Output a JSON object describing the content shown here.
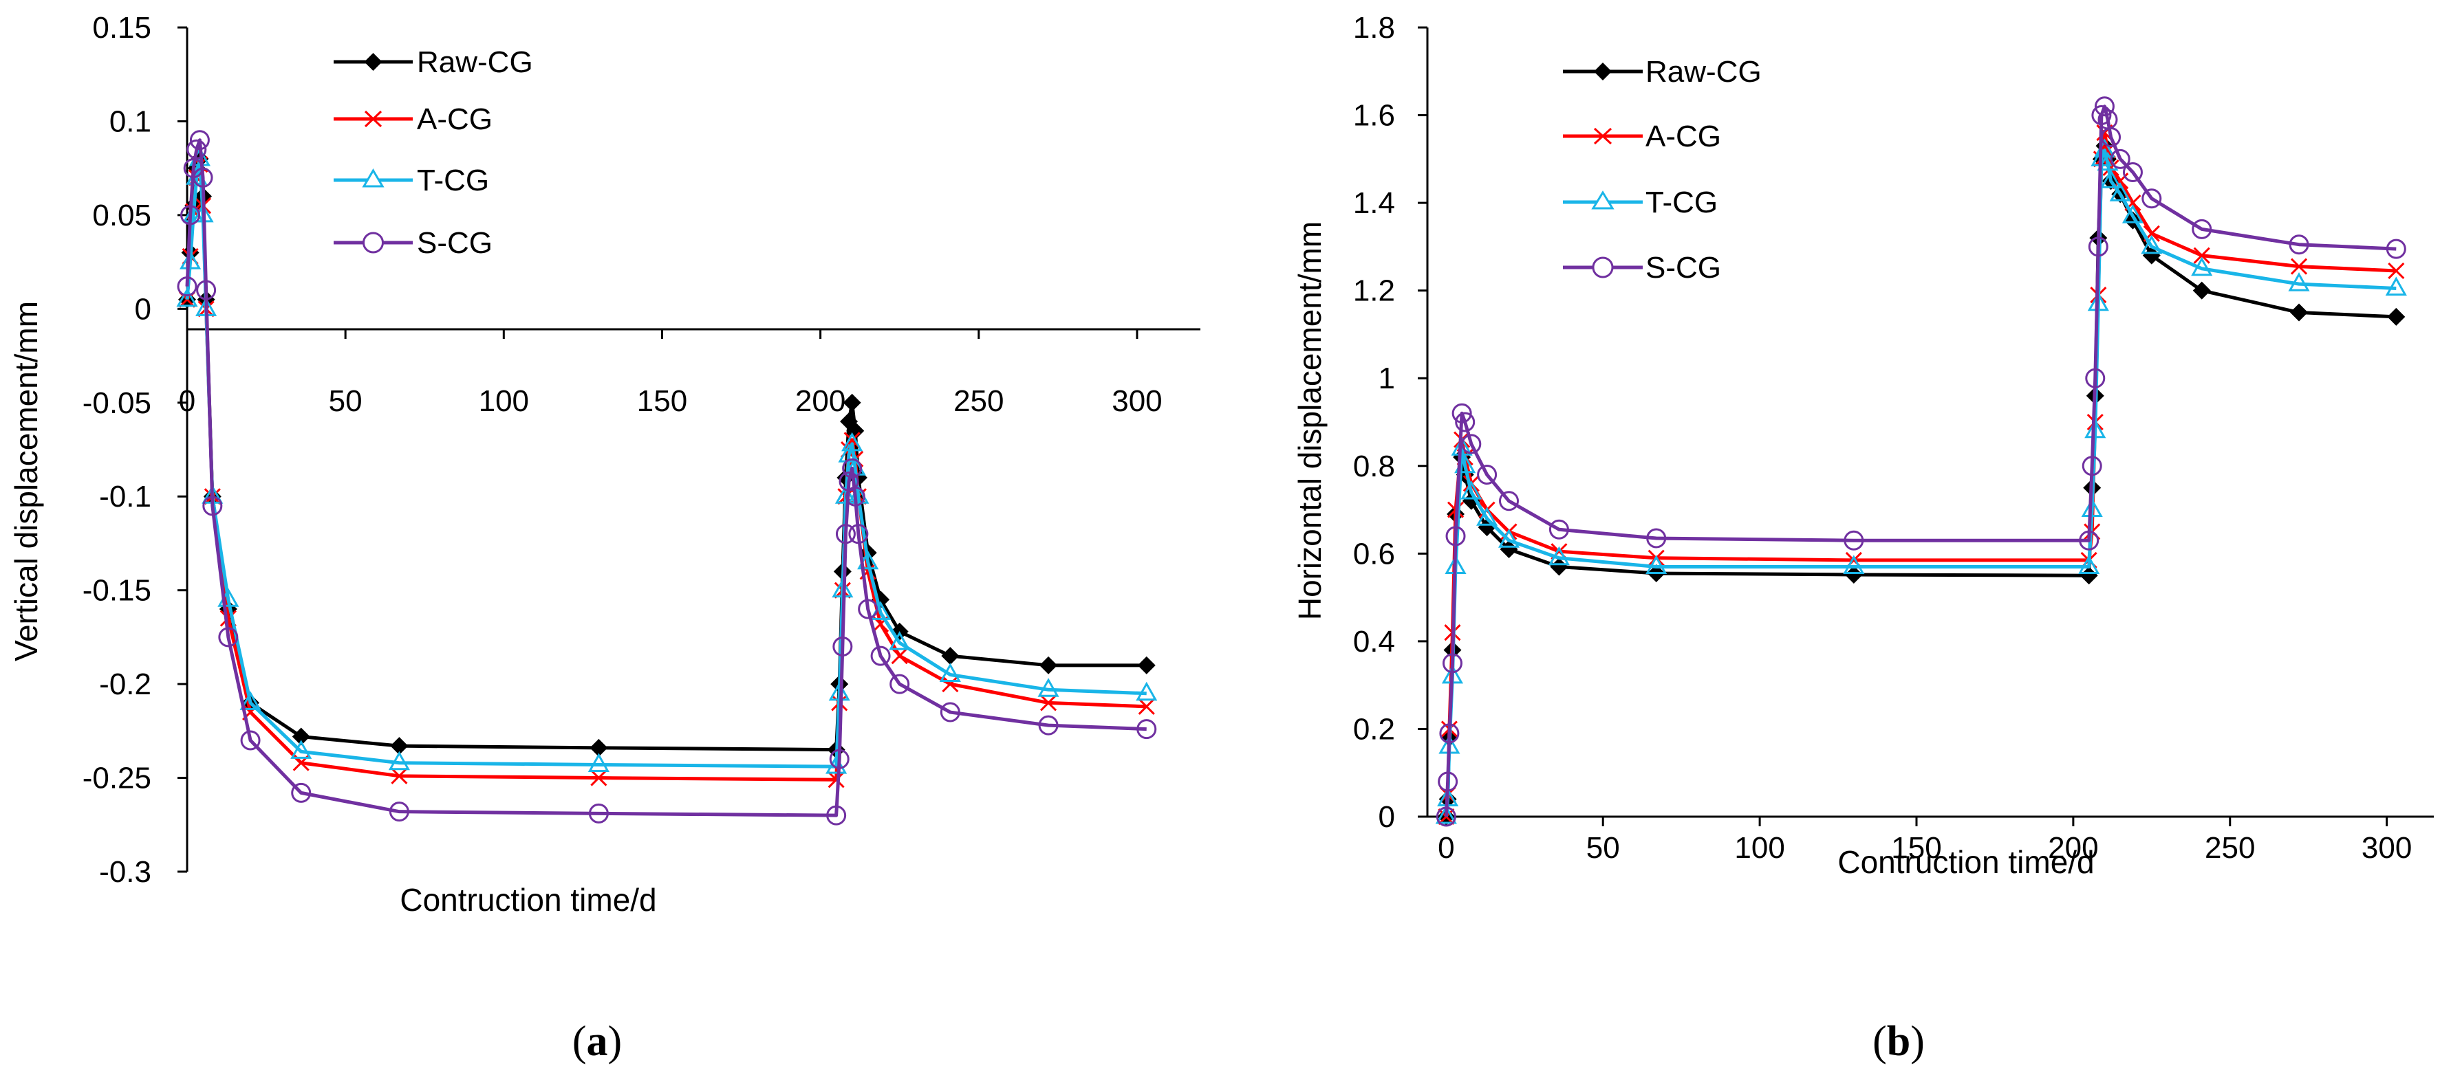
{
  "chart_data": [
    {
      "type": "line",
      "panel_label": "a",
      "xlabel": "Contruction time/d",
      "ylabel": "Vertical displacement/mm",
      "xlim": [
        0,
        320
      ],
      "ylim": [
        -0.3,
        0.15
      ],
      "xticks": [
        "0",
        "50",
        "100",
        "150",
        "200",
        "250",
        "300"
      ],
      "yticks": [
        "0.15",
        "0.1",
        "0.05",
        "0",
        "-0.05",
        "-0.1",
        "-0.15",
        "-0.2",
        "-0.25",
        "-0.3"
      ],
      "x_axis_at_zero": true,
      "legend_position": "top-center",
      "series": [
        {
          "name": "Raw-CG",
          "color": "#000000",
          "marker": "diamond",
          "x": [
            0,
            1,
            2,
            3,
            4,
            5,
            6,
            8,
            13,
            20,
            36,
            67,
            130,
            205,
            206,
            207,
            208,
            209,
            210,
            211,
            212,
            215,
            219,
            225,
            241,
            272,
            303
          ],
          "y": [
            0.005,
            0.03,
            0.055,
            0.075,
            0.08,
            0.06,
            0.005,
            -0.1,
            -0.16,
            -0.21,
            -0.228,
            -0.233,
            -0.234,
            -0.235,
            -0.2,
            -0.14,
            -0.09,
            -0.06,
            -0.05,
            -0.065,
            -0.09,
            -0.13,
            -0.155,
            -0.172,
            -0.185,
            -0.19,
            -0.19
          ]
        },
        {
          "name": "A-CG",
          "color": "#ff0000",
          "marker": "x",
          "x": [
            0,
            1,
            2,
            3,
            4,
            5,
            6,
            8,
            13,
            20,
            36,
            67,
            130,
            205,
            206,
            207,
            208,
            209,
            210,
            211,
            212,
            215,
            219,
            225,
            241,
            272,
            303
          ],
          "y": [
            0.005,
            0.028,
            0.052,
            0.07,
            0.077,
            0.055,
            0.0,
            -0.1,
            -0.165,
            -0.215,
            -0.242,
            -0.249,
            -0.25,
            -0.251,
            -0.21,
            -0.15,
            -0.1,
            -0.075,
            -0.07,
            -0.08,
            -0.1,
            -0.14,
            -0.168,
            -0.185,
            -0.2,
            -0.21,
            -0.212
          ]
        },
        {
          "name": "T-CG",
          "color": "#19b5e8",
          "marker": "triangle",
          "x": [
            0,
            1,
            2,
            3,
            4,
            5,
            6,
            8,
            13,
            20,
            36,
            67,
            130,
            205,
            206,
            207,
            208,
            209,
            210,
            211,
            212,
            215,
            219,
            225,
            241,
            272,
            303
          ],
          "y": [
            0.005,
            0.025,
            0.05,
            0.07,
            0.08,
            0.05,
            0.0,
            -0.1,
            -0.155,
            -0.21,
            -0.236,
            -0.242,
            -0.243,
            -0.244,
            -0.205,
            -0.15,
            -0.1,
            -0.078,
            -0.072,
            -0.085,
            -0.1,
            -0.135,
            -0.162,
            -0.178,
            -0.195,
            -0.203,
            -0.205
          ]
        },
        {
          "name": "S-CG",
          "color": "#7030a0",
          "marker": "circle",
          "x": [
            0,
            1,
            2,
            3,
            4,
            5,
            6,
            8,
            13,
            20,
            36,
            67,
            130,
            205,
            206,
            207,
            208,
            209,
            210,
            211,
            212,
            215,
            219,
            225,
            241,
            272,
            303
          ],
          "y": [
            0.012,
            0.05,
            0.075,
            0.085,
            0.09,
            0.07,
            0.01,
            -0.105,
            -0.175,
            -0.23,
            -0.258,
            -0.268,
            -0.269,
            -0.27,
            -0.24,
            -0.18,
            -0.12,
            -0.092,
            -0.085,
            -0.1,
            -0.12,
            -0.16,
            -0.185,
            -0.2,
            -0.215,
            -0.222,
            -0.224
          ]
        }
      ]
    },
    {
      "type": "line",
      "panel_label": "b",
      "xlabel": "Contruction time/d",
      "ylabel": "Horizontal displacement/mm",
      "xlim": [
        -6,
        315
      ],
      "ylim": [
        0,
        1.8
      ],
      "xticks": [
        "0",
        "50",
        "100",
        "150",
        "200",
        "250",
        "300"
      ],
      "yticks": [
        "1.8",
        "1.6",
        "1.4",
        "1.2",
        "1",
        "0.8",
        "0.6",
        "0.4",
        "0.2",
        "0"
      ],
      "x_axis_at_zero": false,
      "legend_position": "top-center",
      "series": [
        {
          "name": "Raw-CG",
          "color": "#000000",
          "marker": "diamond",
          "x": [
            0,
            0.5,
            1,
            2,
            3,
            5,
            6,
            8,
            13,
            20,
            36,
            67,
            130,
            205,
            206,
            207,
            208,
            209,
            210,
            211,
            212,
            215,
            219,
            225,
            241,
            272,
            303
          ],
          "y": [
            0.0,
            0.04,
            0.18,
            0.38,
            0.69,
            0.82,
            0.78,
            0.72,
            0.66,
            0.61,
            0.57,
            0.555,
            0.552,
            0.55,
            0.75,
            0.96,
            1.32,
            1.5,
            1.53,
            1.5,
            1.45,
            1.42,
            1.36,
            1.28,
            1.2,
            1.15,
            1.14
          ]
        },
        {
          "name": "A-CG",
          "color": "#ff0000",
          "marker": "x",
          "x": [
            0,
            0.5,
            1,
            2,
            3,
            5,
            6,
            8,
            13,
            20,
            36,
            67,
            130,
            205,
            206,
            207,
            208,
            209,
            210,
            211,
            212,
            215,
            219,
            225,
            241,
            272,
            303
          ],
          "y": [
            0.0,
            0.05,
            0.2,
            0.42,
            0.7,
            0.86,
            0.82,
            0.76,
            0.7,
            0.65,
            0.605,
            0.59,
            0.585,
            0.585,
            0.65,
            0.9,
            1.19,
            1.5,
            1.56,
            1.52,
            1.48,
            1.45,
            1.4,
            1.33,
            1.28,
            1.255,
            1.245
          ]
        },
        {
          "name": "T-CG",
          "color": "#19b5e8",
          "marker": "triangle",
          "x": [
            0,
            0.5,
            1,
            2,
            3,
            5,
            6,
            8,
            13,
            20,
            36,
            67,
            130,
            205,
            206,
            207,
            208,
            209,
            210,
            211,
            212,
            215,
            219,
            225,
            241,
            272,
            303
          ],
          "y": [
            0.0,
            0.04,
            0.16,
            0.32,
            0.57,
            0.84,
            0.8,
            0.74,
            0.68,
            0.63,
            0.59,
            0.57,
            0.57,
            0.57,
            0.7,
            0.88,
            1.17,
            1.5,
            1.52,
            1.49,
            1.45,
            1.42,
            1.37,
            1.3,
            1.25,
            1.215,
            1.205
          ]
        },
        {
          "name": "S-CG",
          "color": "#7030a0",
          "marker": "circle",
          "x": [
            0,
            0.5,
            1,
            2,
            3,
            5,
            6,
            8,
            13,
            20,
            36,
            67,
            130,
            205,
            206,
            207,
            208,
            209,
            210,
            211,
            212,
            215,
            219,
            225,
            241,
            272,
            303
          ],
          "y": [
            0.0,
            0.08,
            0.19,
            0.35,
            0.64,
            0.92,
            0.9,
            0.85,
            0.78,
            0.72,
            0.655,
            0.635,
            0.63,
            0.63,
            0.8,
            1.0,
            1.3,
            1.6,
            1.62,
            1.59,
            1.55,
            1.5,
            1.47,
            1.41,
            1.34,
            1.305,
            1.295
          ]
        }
      ]
    }
  ]
}
